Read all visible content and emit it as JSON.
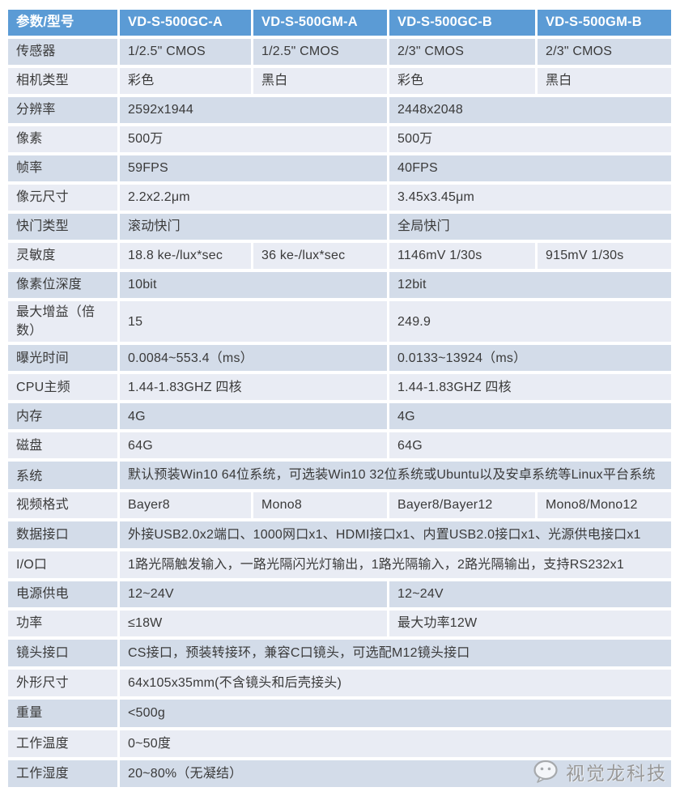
{
  "header": {
    "param_col": "参数/型号",
    "models": [
      "VD-S-500GC-A",
      "VD-S-500GM-A",
      "VD-S-500GC-B",
      "VD-S-500GM-B"
    ]
  },
  "table": {
    "rows": [
      {
        "label": "传感器",
        "cells": [
          {
            "text": "1/2.5\" CMOS",
            "span": 1
          },
          {
            "text": "1/2.5\" CMOS",
            "span": 1
          },
          {
            "text": "2/3\" CMOS",
            "span": 1
          },
          {
            "text": "2/3\" CMOS",
            "span": 1
          }
        ]
      },
      {
        "label": "相机类型",
        "cells": [
          {
            "text": "彩色",
            "span": 1
          },
          {
            "text": "黑白",
            "span": 1
          },
          {
            "text": "彩色",
            "span": 1
          },
          {
            "text": "黑白",
            "span": 1
          }
        ]
      },
      {
        "label": "分辨率",
        "cells": [
          {
            "text": "2592x1944",
            "span": 2
          },
          {
            "text": "2448x2048",
            "span": 2
          }
        ]
      },
      {
        "label": "像素",
        "cells": [
          {
            "text": "500万",
            "span": 2
          },
          {
            "text": "500万",
            "span": 2
          }
        ]
      },
      {
        "label": "帧率",
        "cells": [
          {
            "text": "59FPS",
            "span": 2
          },
          {
            "text": "40FPS",
            "span": 2
          }
        ]
      },
      {
        "label": "像元尺寸",
        "cells": [
          {
            "text": "2.2x2.2μm",
            "span": 2
          },
          {
            "text": "3.45x3.45μm",
            "span": 2
          }
        ]
      },
      {
        "label": "快门类型",
        "cells": [
          {
            "text": "滚动快门",
            "span": 2
          },
          {
            "text": "全局快门",
            "span": 2
          }
        ]
      },
      {
        "label": "灵敏度",
        "cells": [
          {
            "text": "18.8 ke-/lux*sec",
            "span": 1
          },
          {
            "text": "36 ke-/lux*sec",
            "span": 1
          },
          {
            "text": "1146mV 1/30s",
            "span": 1
          },
          {
            "text": "915mV 1/30s",
            "span": 1
          }
        ]
      },
      {
        "label": "像素位深度",
        "cells": [
          {
            "text": "10bit",
            "span": 2
          },
          {
            "text": "12bit",
            "span": 2
          }
        ]
      },
      {
        "label": "最大增益（倍数）",
        "cells": [
          {
            "text": "15",
            "span": 2
          },
          {
            "text": "249.9",
            "span": 2
          }
        ]
      },
      {
        "label": "曝光时间",
        "cells": [
          {
            "text": "0.0084~553.4（ms）",
            "span": 2
          },
          {
            "text": "0.0133~13924（ms）",
            "span": 2
          }
        ]
      },
      {
        "label": "CPU主频",
        "cells": [
          {
            "text": "1.44-1.83GHZ 四核",
            "span": 2
          },
          {
            "text": "1.44-1.83GHZ 四核",
            "span": 2
          }
        ]
      },
      {
        "label": "内存",
        "cells": [
          {
            "text": "4G",
            "span": 2
          },
          {
            "text": "4G",
            "span": 2
          }
        ]
      },
      {
        "label": "磁盘",
        "cells": [
          {
            "text": "64G",
            "span": 2
          },
          {
            "text": "64G",
            "span": 2
          }
        ]
      },
      {
        "label": "系统",
        "tall": true,
        "cells": [
          {
            "text": "默认预装Win10 64位系统，可选装Win10 32位系统或Ubuntu以及安卓系统等Linux平台系统",
            "span": 4
          }
        ]
      },
      {
        "label": "视频格式",
        "cells": [
          {
            "text": "Bayer8",
            "span": 1
          },
          {
            "text": "Mono8",
            "span": 1
          },
          {
            "text": "Bayer8/Bayer12",
            "span": 1
          },
          {
            "text": "Mono8/Mono12",
            "span": 1
          }
        ]
      },
      {
        "label": "数据接口",
        "cells": [
          {
            "text": "外接USB2.0x2端口、1000网口x1、HDMI接口x1、内置USB2.0接口x1、光源供电接口x1",
            "span": 4
          }
        ]
      },
      {
        "label": "I/O口",
        "cells": [
          {
            "text": "1路光隔触发输入，一路光隔闪光灯输出，1路光隔输入，2路光隔输出，支持RS232x1",
            "span": 4
          }
        ]
      },
      {
        "label": "电源供电",
        "cells": [
          {
            "text": "12~24V",
            "span": 2
          },
          {
            "text": "12~24V",
            "span": 2
          }
        ]
      },
      {
        "label": "功率",
        "cells": [
          {
            "text": "≤18W",
            "span": 2
          },
          {
            "text": "最大功率12W",
            "span": 2
          }
        ]
      },
      {
        "label": "镜头接口",
        "cells": [
          {
            "text": "CS接口，预装转接环，兼容C口镜头，可选配M12镜头接口",
            "span": 4
          }
        ]
      },
      {
        "label": "外形尺寸",
        "cells": [
          {
            "text": "64x105x35mm(不含镜头和后壳接头)",
            "span": 4
          }
        ]
      },
      {
        "label": "重量",
        "cells": [
          {
            "text": "<500g",
            "span": 4
          }
        ]
      },
      {
        "label": "工作温度",
        "cells": [
          {
            "text": "0~50度",
            "span": 4
          }
        ]
      },
      {
        "label": "工作湿度",
        "cells": [
          {
            "text": "20~80%（无凝结）",
            "span": 4
          }
        ]
      }
    ]
  },
  "watermark": {
    "icon": "wechat-icon",
    "brand": "视觉龙科技"
  },
  "colors": {
    "header_blue": "#5b9bd5",
    "row_dark": "#d3dce9",
    "row_light": "#e9ecf4",
    "header_text": "#ffffff",
    "body_text": "#3a3a3a",
    "watermark_gray": "#989898"
  }
}
